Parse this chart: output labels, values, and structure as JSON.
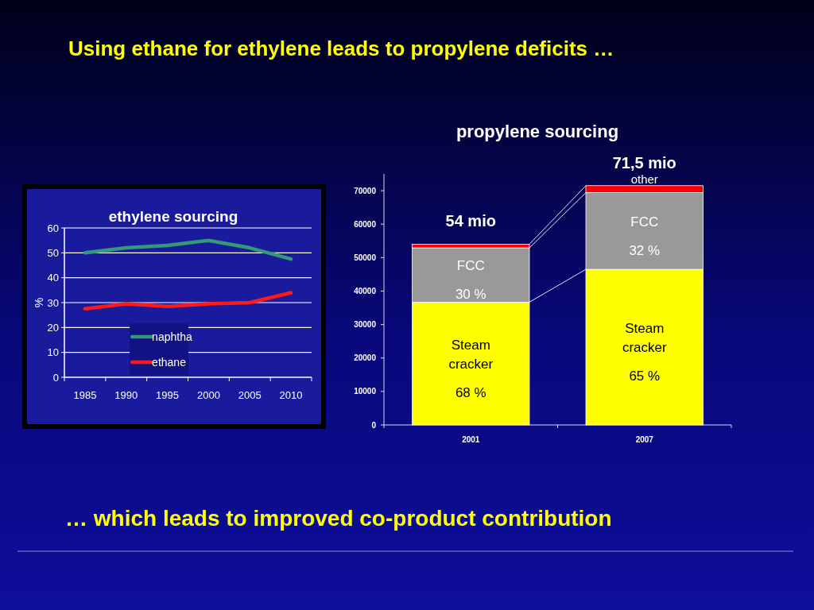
{
  "chart_data": [
    {
      "type": "other",
      "title": "Using ethane for ethylene leads to propylene deficits …",
      "annotations": [
        "… which leads to improved co-product contribution"
      ]
    },
    {
      "type": "line",
      "title": "ethylene sourcing",
      "ylabel": "%",
      "categories": [
        "1985",
        "1990",
        "1995",
        "2000",
        "2005",
        "2010"
      ],
      "series": [
        {
          "name": "naphtha",
          "color": "#339977",
          "values": [
            50,
            52,
            53,
            55,
            52,
            47.5
          ]
        },
        {
          "name": "ethane",
          "color": "#ff1a1a",
          "values": [
            27.5,
            29.5,
            28.5,
            29.5,
            30,
            34
          ]
        }
      ],
      "ylim": [
        0,
        60
      ],
      "yticks": [
        0,
        10,
        20,
        30,
        40,
        50,
        60
      ],
      "grid": "y",
      "legend": "bottom left"
    },
    {
      "type": "bar",
      "title": "propylene sourcing",
      "categories": [
        "2001",
        "2007"
      ],
      "stacked": true,
      "series": [
        {
          "name": "Steam cracker",
          "color": "#ffff00",
          "values": [
            36700,
            46500
          ]
        },
        {
          "name": "FCC",
          "color": "#999999",
          "values": [
            16200,
            22900
          ]
        },
        {
          "name": "other",
          "color": "#ff0000",
          "values": [
            1100,
            2100
          ]
        }
      ],
      "ylim": [
        0,
        75000
      ],
      "yticks": [
        0,
        10000,
        20000,
        30000,
        40000,
        50000,
        60000,
        70000
      ],
      "annotations": [
        {
          "text": "54 mio",
          "x": "2001",
          "y": 54000
        },
        {
          "text": "71,5 mio",
          "x": "2007",
          "y": 71500
        },
        "68 %",
        "30 %",
        "65 %",
        "32 %"
      ]
    }
  ]
}
